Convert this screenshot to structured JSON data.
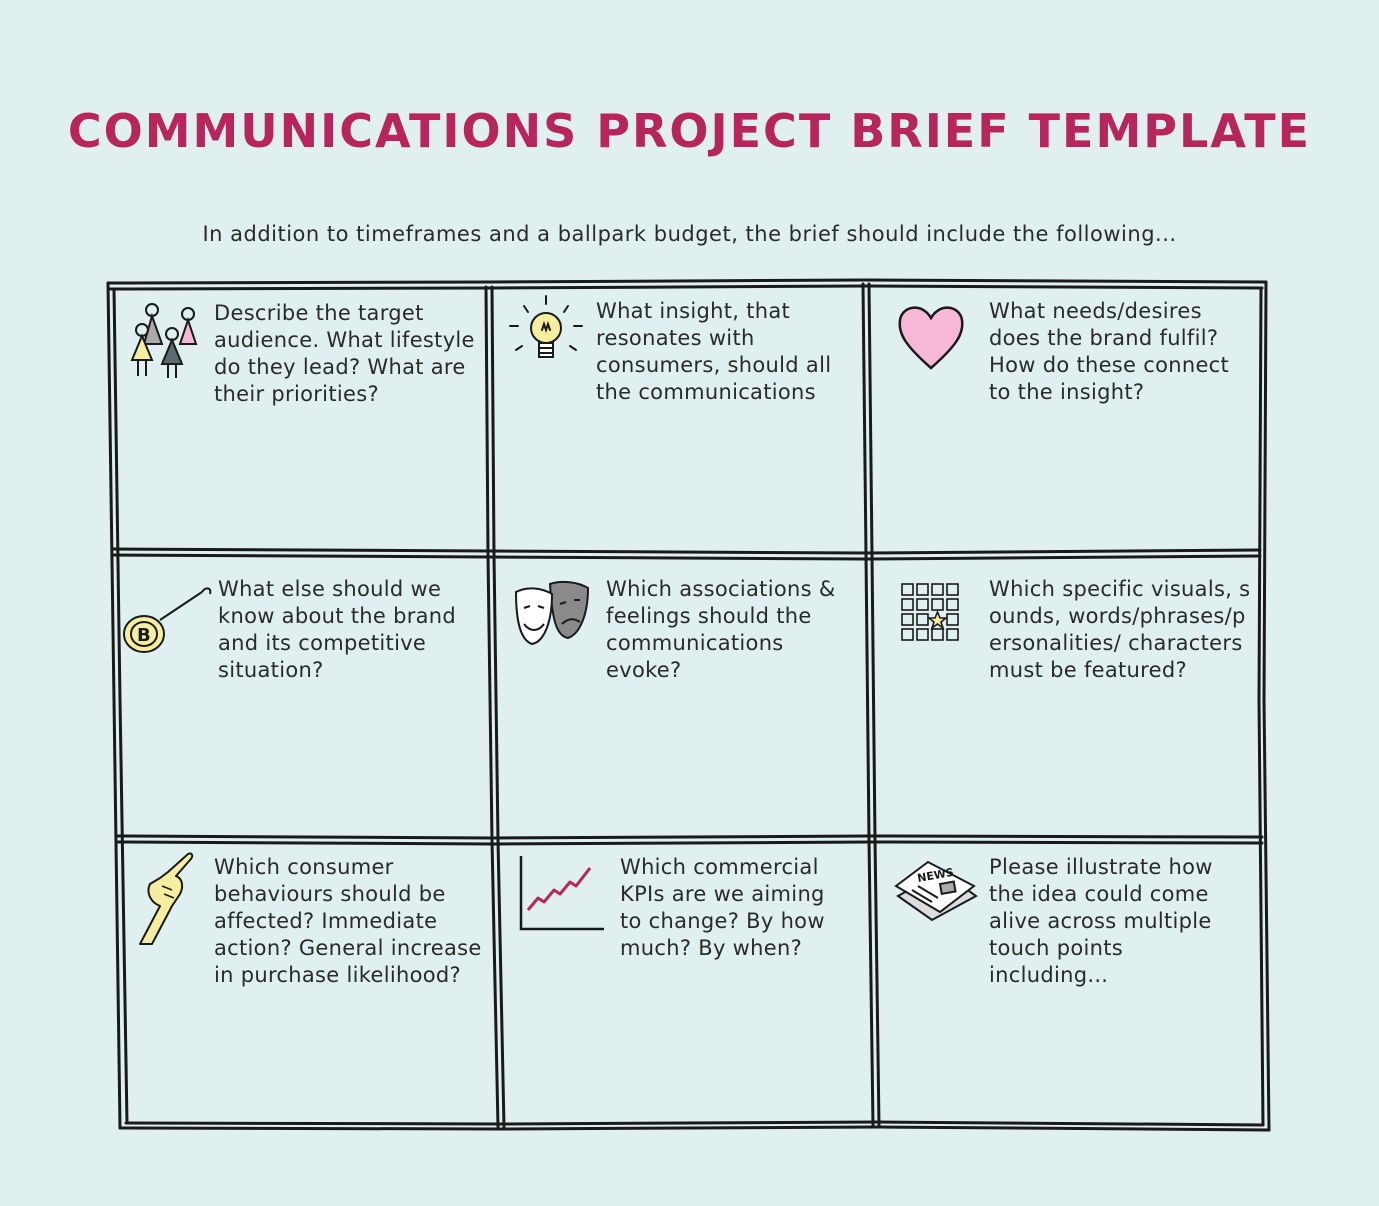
{
  "title": "COMMUNICATIONS PROJECT BRIEF TEMPLATE",
  "subtitle": "In addition to timeframes and a ballpark budget, the brief should include the following...",
  "cells": [
    {
      "icon": "people-icon",
      "text": "Describe the target audience. What lifestyle do they lead? What are their priorities?"
    },
    {
      "icon": "lightbulb-icon",
      "text": "What insight, that resonates with consumers, should all the communications"
    },
    {
      "icon": "heart-icon",
      "text": "What needs/desires does the brand fulfil? How do these connect to the insight?"
    },
    {
      "icon": "coin-pin-icon",
      "text": "What else should we know about the brand and its competitive situation?"
    },
    {
      "icon": "theatre-masks-icon",
      "text": "Which associations & feelings should the communications evoke?"
    },
    {
      "icon": "grid-star-icon",
      "text": "Which specific visuals, sounds, words/phrases/personalities/ characters must be featured?"
    },
    {
      "icon": "pointing-hand-icon",
      "text": "Which consumer behaviours should be affected? Immediate action? General increase in purchase likelihood?"
    },
    {
      "icon": "line-chart-icon",
      "text": "Which commercial KPIs are we aiming to change? By how much? By when?"
    },
    {
      "icon": "newspaper-icon",
      "text": "Please illustrate how the idea could come alive across multiple touch points including..."
    }
  ],
  "newspaper_label": "NEWS",
  "coin_letter": "B",
  "colors": {
    "title": "#b8245c",
    "background": "#e0eff0",
    "heart": "#f7b8d8",
    "accent": "#b8245c",
    "yellow": "#f5ee9e"
  }
}
